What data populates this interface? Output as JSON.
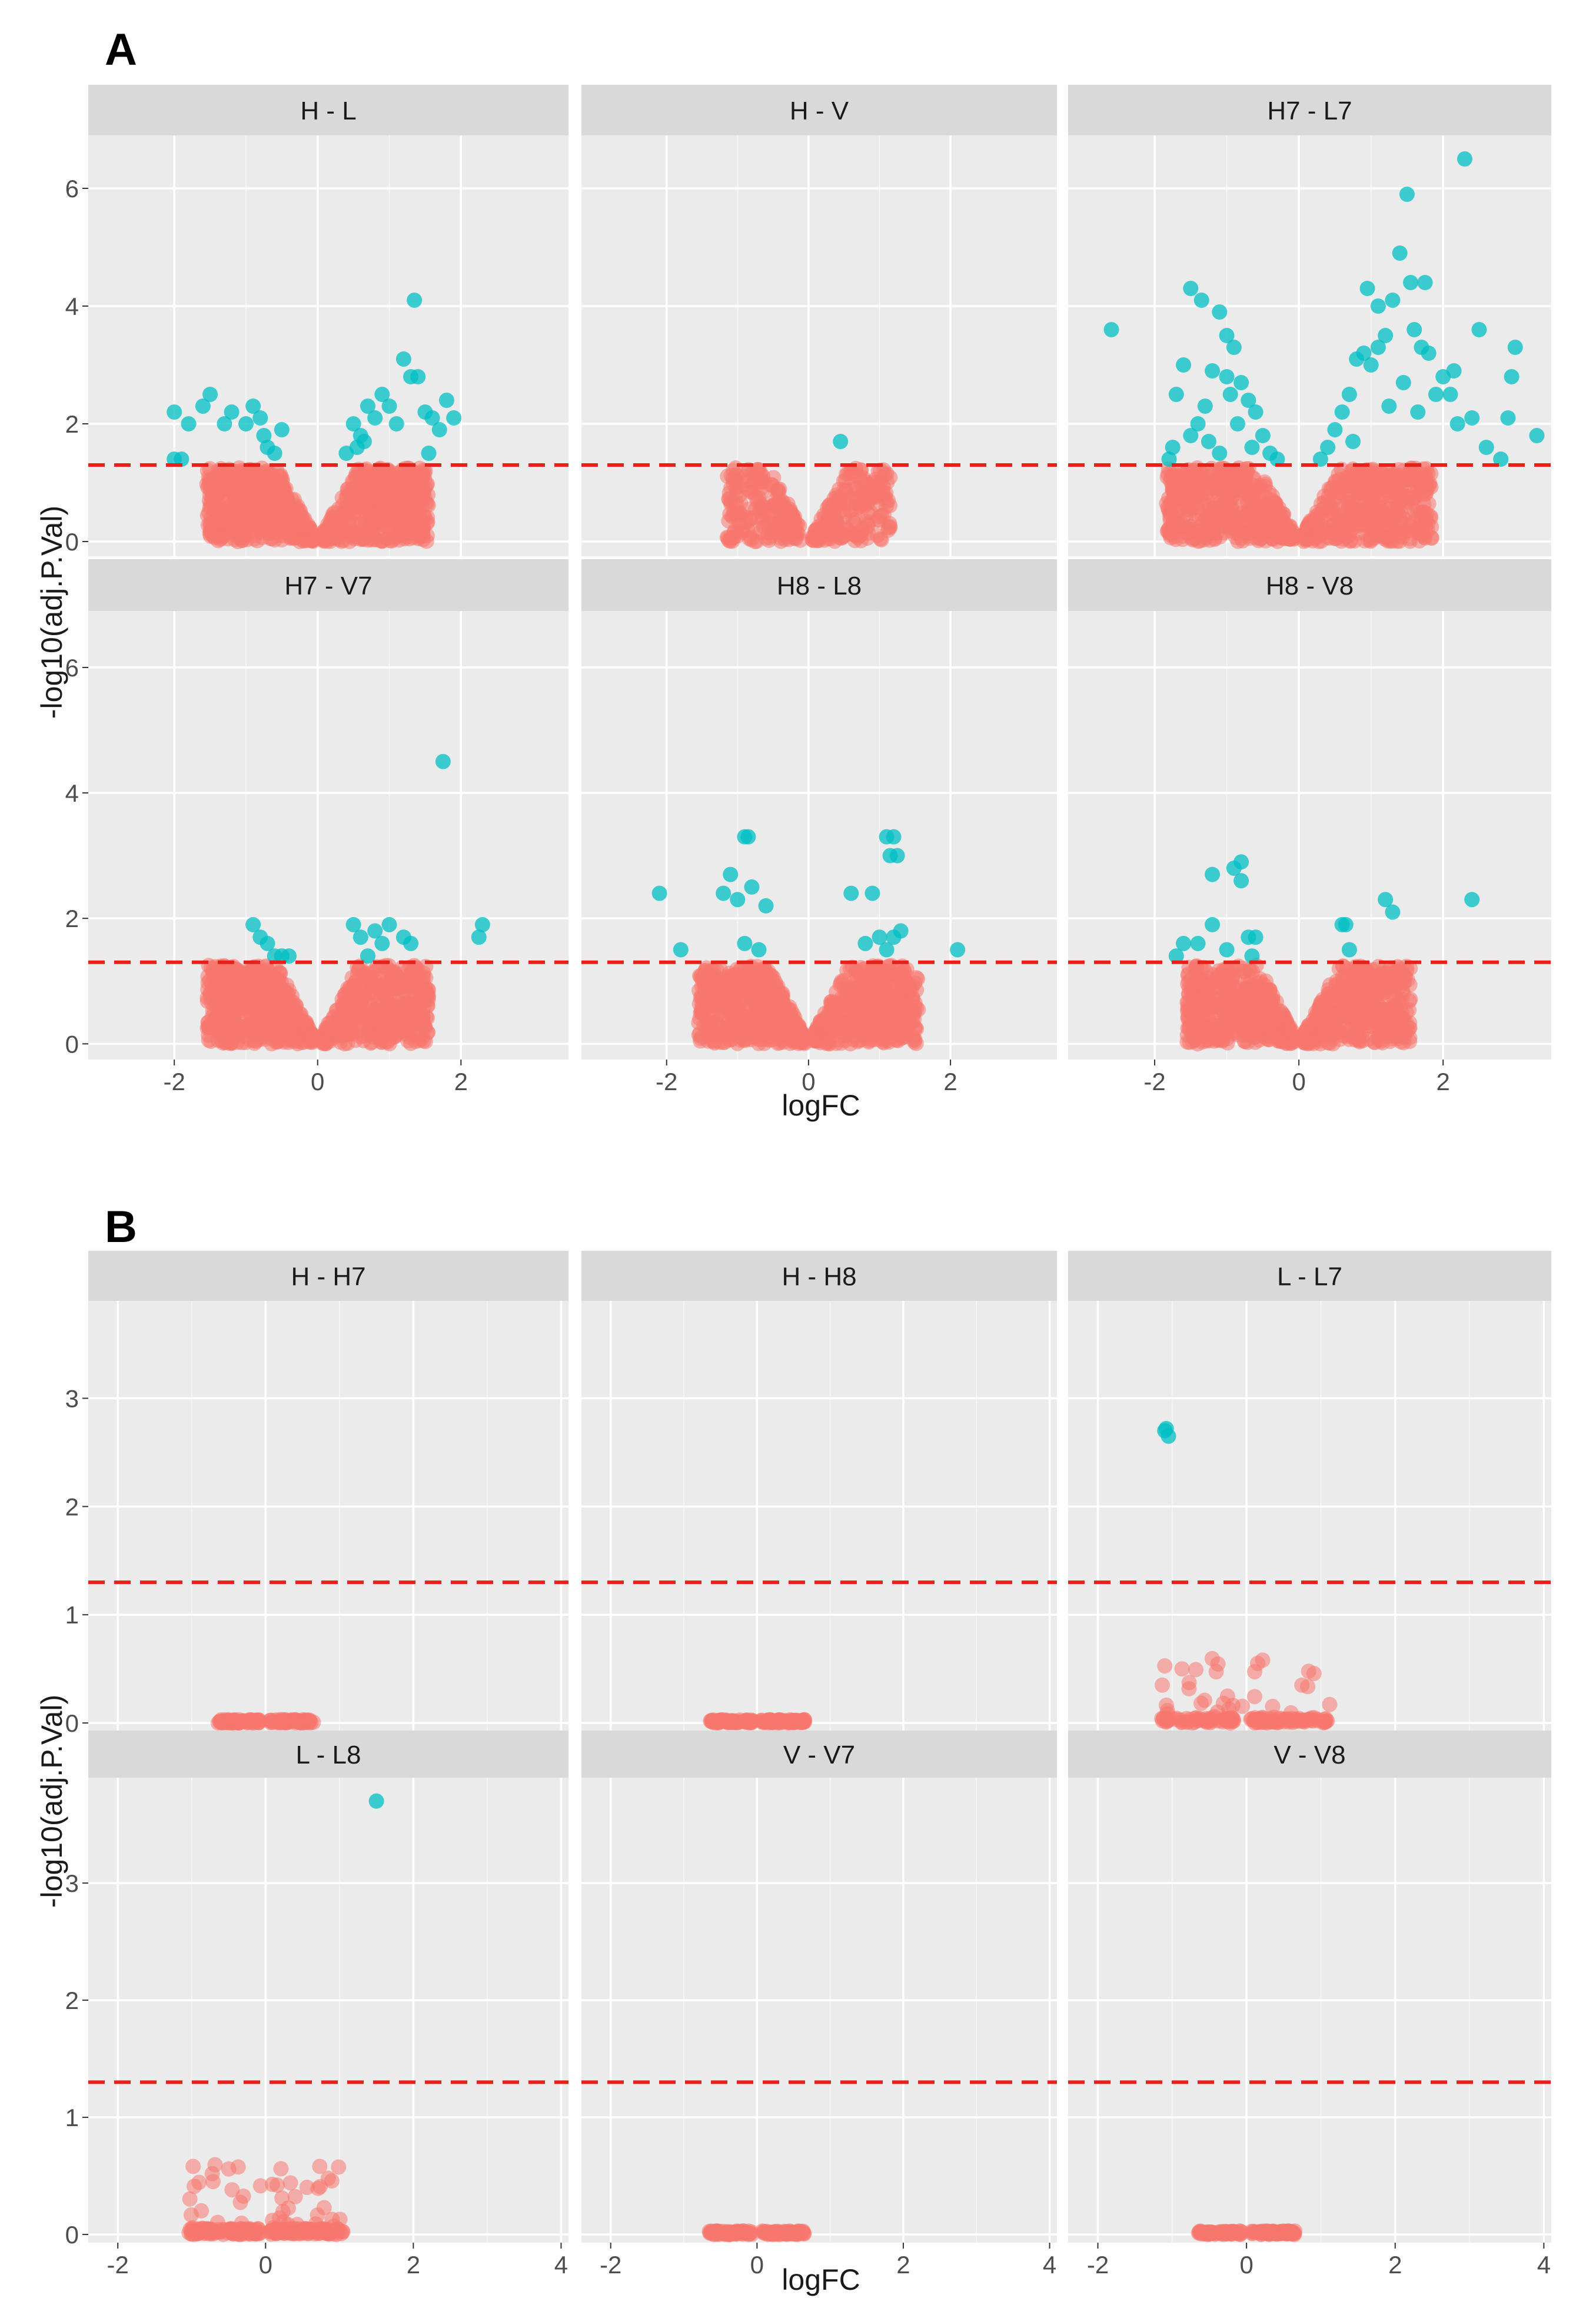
{
  "figure": {
    "panel_A_label": "A",
    "panel_B_label": "B",
    "colors": {
      "not_significant": "#F8766D",
      "significant": "#00BFC4",
      "threshold_line": "#E8201A",
      "panel_bg": "#EBEBEB",
      "strip_bg": "#D9D9D9",
      "grid": "#FFFFFF"
    }
  },
  "chart_data": [
    {
      "type": "scatter",
      "title": "A",
      "xlabel": "logFC",
      "ylabel": "-log10(adj.P.Val)",
      "xlim": [
        -3.2,
        3.5
      ],
      "ylim": [
        -0.25,
        6.9
      ],
      "xticks": [
        -2,
        0,
        2
      ],
      "yticks": [
        0,
        2,
        4,
        6
      ],
      "threshold": 1.3,
      "facets": [
        {
          "name": "H - L",
          "significant": [
            [
              -2,
              2.2
            ],
            [
              -1.8,
              2.0
            ],
            [
              -1.6,
              2.3
            ],
            [
              -1.5,
              2.5
            ],
            [
              -1.3,
              2.0
            ],
            [
              -1.2,
              2.2
            ],
            [
              -1.0,
              2.0
            ],
            [
              -0.9,
              2.3
            ],
            [
              -0.8,
              2.1
            ],
            [
              -0.7,
              1.6
            ],
            [
              -0.75,
              1.8
            ],
            [
              -0.6,
              1.5
            ],
            [
              -0.5,
              1.9
            ],
            [
              -2.0,
              1.4
            ],
            [
              -1.9,
              1.4
            ],
            [
              0.4,
              1.5
            ],
            [
              0.5,
              2.0
            ],
            [
              0.6,
              1.8
            ],
            [
              0.7,
              2.3
            ],
            [
              0.8,
              2.1
            ],
            [
              0.9,
              2.5
            ],
            [
              1.0,
              2.3
            ],
            [
              1.1,
              2.0
            ],
            [
              1.2,
              3.1
            ],
            [
              1.3,
              2.8
            ],
            [
              1.35,
              4.1
            ],
            [
              1.4,
              2.8
            ],
            [
              1.5,
              2.2
            ],
            [
              1.6,
              2.1
            ],
            [
              1.7,
              1.9
            ],
            [
              1.8,
              2.4
            ],
            [
              1.9,
              2.1
            ],
            [
              0.55,
              1.6
            ],
            [
              0.65,
              1.7
            ],
            [
              1.55,
              1.5
            ]
          ]
        },
        {
          "name": "H - V",
          "significant": [
            [
              0.45,
              1.7
            ]
          ]
        },
        {
          "name": "H7 - L7",
          "significant": [
            [
              -2.6,
              3.6
            ],
            [
              -1.5,
              4.3
            ],
            [
              -1.35,
              4.1
            ],
            [
              -1.1,
              3.9
            ],
            [
              -1.0,
              3.5
            ],
            [
              -0.9,
              3.3
            ],
            [
              -1.6,
              3.0
            ],
            [
              -1.7,
              2.5
            ],
            [
              -1.8,
              1.4
            ],
            [
              -1.75,
              1.6
            ],
            [
              -1.2,
              2.9
            ],
            [
              -1.0,
              2.8
            ],
            [
              -0.8,
              2.7
            ],
            [
              -0.7,
              2.4
            ],
            [
              -0.6,
              2.2
            ],
            [
              -0.5,
              1.8
            ],
            [
              -0.4,
              1.5
            ],
            [
              -0.3,
              1.4
            ],
            [
              -1.3,
              2.3
            ],
            [
              -1.4,
              2.0
            ],
            [
              -1.5,
              1.8
            ],
            [
              -0.95,
              2.5
            ],
            [
              -0.85,
              2.0
            ],
            [
              -0.65,
              1.6
            ],
            [
              -1.1,
              1.5
            ],
            [
              -1.25,
              1.7
            ],
            [
              0.3,
              1.4
            ],
            [
              0.4,
              1.6
            ],
            [
              0.5,
              1.9
            ],
            [
              0.6,
              2.2
            ],
            [
              0.7,
              2.5
            ],
            [
              0.8,
              3.1
            ],
            [
              0.9,
              3.2
            ],
            [
              1.0,
              3.0
            ],
            [
              1.1,
              3.3
            ],
            [
              1.2,
              3.5
            ],
            [
              0.95,
              4.3
            ],
            [
              1.1,
              4.0
            ],
            [
              1.3,
              4.1
            ],
            [
              1.4,
              4.9
            ],
            [
              1.5,
              5.9
            ],
            [
              1.55,
              4.4
            ],
            [
              1.6,
              3.6
            ],
            [
              1.7,
              3.3
            ],
            [
              1.8,
              3.2
            ],
            [
              1.9,
              2.5
            ],
            [
              2.0,
              2.8
            ],
            [
              2.1,
              2.5
            ],
            [
              2.2,
              2.0
            ],
            [
              2.3,
              6.5
            ],
            [
              2.4,
              2.1
            ],
            [
              2.5,
              3.6
            ],
            [
              2.6,
              1.6
            ],
            [
              2.8,
              1.4
            ],
            [
              2.9,
              2.1
            ],
            [
              2.95,
              2.8
            ],
            [
              3.0,
              3.3
            ],
            [
              3.3,
              1.8
            ],
            [
              1.75,
              4.4
            ],
            [
              1.45,
              2.7
            ],
            [
              0.75,
              1.7
            ],
            [
              1.25,
              2.3
            ],
            [
              1.65,
              2.2
            ],
            [
              2.15,
              2.9
            ]
          ]
        },
        {
          "name": "H7 - V7",
          "significant": [
            [
              -0.9,
              1.9
            ],
            [
              -0.8,
              1.7
            ],
            [
              -0.7,
              1.6
            ],
            [
              -0.6,
              1.4
            ],
            [
              -0.5,
              1.4
            ],
            [
              -0.4,
              1.4
            ],
            [
              0.5,
              1.9
            ],
            [
              0.6,
              1.7
            ],
            [
              0.7,
              1.4
            ],
            [
              0.8,
              1.8
            ],
            [
              0.9,
              1.6
            ],
            [
              1.0,
              1.9
            ],
            [
              1.2,
              1.7
            ],
            [
              1.3,
              1.6
            ],
            [
              1.75,
              4.5
            ],
            [
              2.3,
              1.9
            ],
            [
              2.25,
              1.7
            ]
          ]
        },
        {
          "name": "H8 - L8",
          "significant": [
            [
              -2.1,
              2.4
            ],
            [
              -1.8,
              1.5
            ],
            [
              -1.2,
              2.4
            ],
            [
              -1.1,
              2.7
            ],
            [
              -1.0,
              2.3
            ],
            [
              -0.9,
              3.3
            ],
            [
              -0.85,
              3.3
            ],
            [
              -0.8,
              2.5
            ],
            [
              -0.6,
              2.2
            ],
            [
              -0.9,
              1.6
            ],
            [
              -0.7,
              1.5
            ],
            [
              0.6,
              2.4
            ],
            [
              0.8,
              1.6
            ],
            [
              0.9,
              2.4
            ],
            [
              1.0,
              1.7
            ],
            [
              1.1,
              3.3
            ],
            [
              1.15,
              3.0
            ],
            [
              1.2,
              3.3
            ],
            [
              1.25,
              3.0
            ],
            [
              1.3,
              1.8
            ],
            [
              1.1,
              1.5
            ],
            [
              2.1,
              1.5
            ],
            [
              1.2,
              1.7
            ]
          ]
        },
        {
          "name": "H8 - V8",
          "significant": [
            [
              -1.7,
              1.4
            ],
            [
              -1.6,
              1.6
            ],
            [
              -1.4,
              1.6
            ],
            [
              -1.2,
              2.7
            ],
            [
              -1.2,
              1.9
            ],
            [
              -1.0,
              1.5
            ],
            [
              -0.9,
              2.8
            ],
            [
              -0.8,
              2.6
            ],
            [
              -0.8,
              2.9
            ],
            [
              -0.7,
              1.7
            ],
            [
              -0.6,
              1.7
            ],
            [
              -0.65,
              1.4
            ],
            [
              0.6,
              1.9
            ],
            [
              0.65,
              1.9
            ],
            [
              0.7,
              1.5
            ],
            [
              1.2,
              2.3
            ],
            [
              1.3,
              2.1
            ],
            [
              2.4,
              2.3
            ]
          ]
        }
      ]
    },
    {
      "type": "scatter",
      "title": "B",
      "xlabel": "logFC",
      "ylabel": "-log10(adj.P.Val)",
      "xlim": [
        -2.4,
        4.1
      ],
      "ylim": [
        -0.07,
        3.9
      ],
      "xticks": [
        -2,
        0,
        2,
        4
      ],
      "yticks": [
        0,
        1,
        2,
        3
      ],
      "threshold": 1.3,
      "facets": [
        {
          "name": "H - H7",
          "significant": []
        },
        {
          "name": "H - H8",
          "significant": []
        },
        {
          "name": "L - L7",
          "significant": [
            [
              -1.1,
              2.7
            ],
            [
              -1.05,
              2.65
            ],
            [
              -1.08,
              2.72
            ]
          ]
        },
        {
          "name": "L - L8",
          "significant": [
            [
              1.5,
              3.7
            ]
          ]
        },
        {
          "name": "V - V7",
          "significant": []
        },
        {
          "name": "V - V8",
          "significant": []
        }
      ]
    }
  ]
}
